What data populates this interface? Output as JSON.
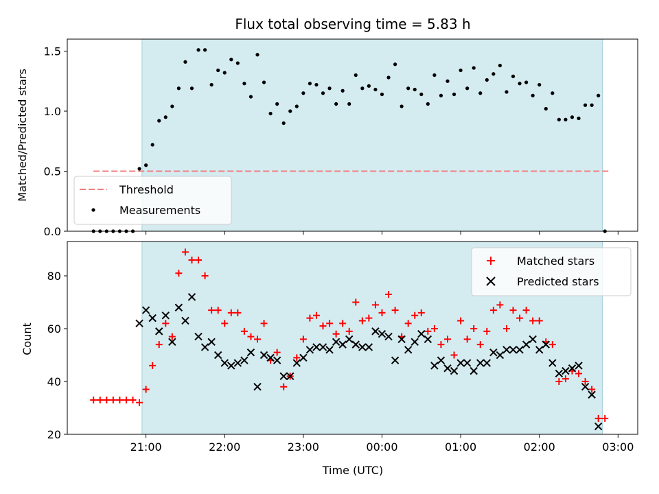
{
  "chart_data": [
    {
      "type": "scatter",
      "title": "Flux total observing time = 5.83 h",
      "xlabel": "",
      "ylabel": "Matched/Predicted stars",
      "ylim": [
        0,
        1.6
      ],
      "xlim": [
        "20:00",
        "03:15"
      ],
      "x_ticks": [
        "21:00",
        "22:00",
        "23:00",
        "00:00",
        "01:00",
        "02:00",
        "03:00"
      ],
      "y_ticks": [
        "0.0",
        "0.5",
        "1.0",
        "1.5"
      ],
      "observing_window": [
        "20:57",
        "02:48"
      ],
      "window_color": "#d4ebf0",
      "legend_position": "lower-left",
      "threshold": {
        "name": "Threshold",
        "value": 0.5,
        "x_range": [
          "20:20",
          "02:53"
        ],
        "color": "#f07f7f"
      },
      "series": [
        {
          "name": "Measurements",
          "color": "#000000",
          "marker": "dot",
          "points": [
            [
              "20:20",
              0.0
            ],
            [
              "20:25",
              0.0
            ],
            [
              "20:30",
              0.0
            ],
            [
              "20:35",
              0.0
            ],
            [
              "20:40",
              0.0
            ],
            [
              "20:45",
              0.0
            ],
            [
              "20:50",
              0.0
            ],
            [
              "20:55",
              0.52
            ],
            [
              "21:00",
              0.55
            ],
            [
              "21:05",
              0.72
            ],
            [
              "21:10",
              0.92
            ],
            [
              "21:15",
              0.95
            ],
            [
              "21:20",
              1.04
            ],
            [
              "21:25",
              1.19
            ],
            [
              "21:30",
              1.41
            ],
            [
              "21:35",
              1.19
            ],
            [
              "21:40",
              1.51
            ],
            [
              "21:45",
              1.51
            ],
            [
              "21:50",
              1.22
            ],
            [
              "21:55",
              1.34
            ],
            [
              "22:00",
              1.32
            ],
            [
              "22:05",
              1.43
            ],
            [
              "22:10",
              1.4
            ],
            [
              "22:15",
              1.23
            ],
            [
              "22:20",
              1.12
            ],
            [
              "22:25",
              1.47
            ],
            [
              "22:30",
              1.24
            ],
            [
              "22:35",
              0.98
            ],
            [
              "22:40",
              1.06
            ],
            [
              "22:45",
              0.9
            ],
            [
              "22:50",
              1.0
            ],
            [
              "22:55",
              1.04
            ],
            [
              "23:00",
              1.15
            ],
            [
              "23:05",
              1.23
            ],
            [
              "23:10",
              1.22
            ],
            [
              "23:15",
              1.15
            ],
            [
              "23:20",
              1.19
            ],
            [
              "23:25",
              1.06
            ],
            [
              "23:30",
              1.17
            ],
            [
              "23:35",
              1.06
            ],
            [
              "23:40",
              1.3
            ],
            [
              "23:45",
              1.19
            ],
            [
              "23:50",
              1.21
            ],
            [
              "23:55",
              1.18
            ],
            [
              "00:00",
              1.14
            ],
            [
              "00:05",
              1.28
            ],
            [
              "00:10",
              1.39
            ],
            [
              "00:15",
              1.04
            ],
            [
              "00:20",
              1.19
            ],
            [
              "00:25",
              1.18
            ],
            [
              "00:30",
              1.14
            ],
            [
              "00:35",
              1.06
            ],
            [
              "00:40",
              1.3
            ],
            [
              "00:45",
              1.13
            ],
            [
              "00:50",
              1.25
            ],
            [
              "00:55",
              1.14
            ],
            [
              "01:00",
              1.34
            ],
            [
              "01:05",
              1.19
            ],
            [
              "01:10",
              1.36
            ],
            [
              "01:15",
              1.15
            ],
            [
              "01:20",
              1.26
            ],
            [
              "01:25",
              1.31
            ],
            [
              "01:30",
              1.38
            ],
            [
              "01:35",
              1.16
            ],
            [
              "01:40",
              1.29
            ],
            [
              "01:45",
              1.23
            ],
            [
              "01:50",
              1.24
            ],
            [
              "01:55",
              1.13
            ],
            [
              "02:00",
              1.22
            ],
            [
              "02:05",
              1.02
            ],
            [
              "02:10",
              1.15
            ],
            [
              "02:15",
              0.93
            ],
            [
              "02:20",
              0.93
            ],
            [
              "02:25",
              0.95
            ],
            [
              "02:30",
              0.94
            ],
            [
              "02:35",
              1.05
            ],
            [
              "02:40",
              1.05
            ],
            [
              "02:45",
              1.13
            ],
            [
              "02:50",
              0.0
            ]
          ]
        }
      ]
    },
    {
      "type": "scatter",
      "title": "",
      "xlabel": "Time (UTC)",
      "ylabel": "Count",
      "ylim": [
        20,
        93
      ],
      "xlim": [
        "20:00",
        "03:15"
      ],
      "x_ticks": [
        "21:00",
        "22:00",
        "23:00",
        "00:00",
        "01:00",
        "02:00",
        "03:00"
      ],
      "y_ticks": [
        "20",
        "40",
        "60",
        "80"
      ],
      "observing_window": [
        "20:57",
        "02:48"
      ],
      "window_color": "#d4ebf0",
      "legend_position": "top-right",
      "series": [
        {
          "name": "Matched stars",
          "color": "#ff0000",
          "marker": "plus",
          "points": [
            [
              "20:20",
              33
            ],
            [
              "20:25",
              33
            ],
            [
              "20:30",
              33
            ],
            [
              "20:35",
              33
            ],
            [
              "20:40",
              33
            ],
            [
              "20:45",
              33
            ],
            [
              "20:50",
              33
            ],
            [
              "20:55",
              32
            ],
            [
              "21:00",
              37
            ],
            [
              "21:05",
              46
            ],
            [
              "21:10",
              54
            ],
            [
              "21:15",
              62
            ],
            [
              "21:20",
              57
            ],
            [
              "21:25",
              81
            ],
            [
              "21:30",
              89
            ],
            [
              "21:35",
              86
            ],
            [
              "21:40",
              86
            ],
            [
              "21:45",
              80
            ],
            [
              "21:50",
              67
            ],
            [
              "21:55",
              67
            ],
            [
              "22:00",
              62
            ],
            [
              "22:05",
              66
            ],
            [
              "22:10",
              66
            ],
            [
              "22:15",
              59
            ],
            [
              "22:20",
              57
            ],
            [
              "22:25",
              56
            ],
            [
              "22:30",
              62
            ],
            [
              "22:35",
              48
            ],
            [
              "22:40",
              51
            ],
            [
              "22:45",
              38
            ],
            [
              "22:50",
              42
            ],
            [
              "22:55",
              49
            ],
            [
              "23:00",
              56
            ],
            [
              "23:05",
              64
            ],
            [
              "23:10",
              65
            ],
            [
              "23:15",
              61
            ],
            [
              "23:20",
              62
            ],
            [
              "23:25",
              58
            ],
            [
              "23:30",
              62
            ],
            [
              "23:35",
              59
            ],
            [
              "23:40",
              70
            ],
            [
              "23:45",
              63
            ],
            [
              "23:50",
              64
            ],
            [
              "23:55",
              69
            ],
            [
              "00:00",
              66
            ],
            [
              "00:05",
              73
            ],
            [
              "00:10",
              67
            ],
            [
              "00:15",
              57
            ],
            [
              "00:20",
              62
            ],
            [
              "00:25",
              65
            ],
            [
              "00:30",
              66
            ],
            [
              "00:35",
              59
            ],
            [
              "00:40",
              60
            ],
            [
              "00:45",
              54
            ],
            [
              "00:50",
              56
            ],
            [
              "00:55",
              50
            ],
            [
              "01:00",
              63
            ],
            [
              "01:05",
              56
            ],
            [
              "01:10",
              60
            ],
            [
              "01:15",
              54
            ],
            [
              "01:20",
              59
            ],
            [
              "01:25",
              67
            ],
            [
              "01:30",
              69
            ],
            [
              "01:35",
              60
            ],
            [
              "01:40",
              67
            ],
            [
              "01:45",
              64
            ],
            [
              "01:50",
              67
            ],
            [
              "01:55",
              63
            ],
            [
              "02:00",
              63
            ],
            [
              "02:05",
              55
            ],
            [
              "02:10",
              54
            ],
            [
              "02:15",
              40
            ],
            [
              "02:20",
              41
            ],
            [
              "02:25",
              44
            ],
            [
              "02:30",
              43
            ],
            [
              "02:35",
              40
            ],
            [
              "02:40",
              37
            ],
            [
              "02:45",
              26
            ],
            [
              "02:50",
              26
            ]
          ]
        },
        {
          "name": "Predicted stars",
          "color": "#000000",
          "marker": "x",
          "points": [
            [
              "20:55",
              62
            ],
            [
              "21:00",
              67
            ],
            [
              "21:05",
              64
            ],
            [
              "21:10",
              59
            ],
            [
              "21:15",
              65
            ],
            [
              "21:20",
              55
            ],
            [
              "21:25",
              68
            ],
            [
              "21:30",
              63
            ],
            [
              "21:35",
              72
            ],
            [
              "21:40",
              57
            ],
            [
              "21:45",
              53
            ],
            [
              "21:50",
              55
            ],
            [
              "21:55",
              50
            ],
            [
              "22:00",
              47
            ],
            [
              "22:05",
              46
            ],
            [
              "22:10",
              47
            ],
            [
              "22:15",
              48
            ],
            [
              "22:20",
              51
            ],
            [
              "22:25",
              38
            ],
            [
              "22:30",
              50
            ],
            [
              "22:35",
              49
            ],
            [
              "22:40",
              48
            ],
            [
              "22:45",
              42
            ],
            [
              "22:50",
              42
            ],
            [
              "22:55",
              47
            ],
            [
              "23:00",
              49
            ],
            [
              "23:05",
              52
            ],
            [
              "23:10",
              53
            ],
            [
              "23:15",
              53
            ],
            [
              "23:20",
              52
            ],
            [
              "23:25",
              55
            ],
            [
              "23:30",
              54
            ],
            [
              "23:35",
              56
            ],
            [
              "23:40",
              54
            ],
            [
              "23:45",
              53
            ],
            [
              "23:50",
              53
            ],
            [
              "23:55",
              59
            ],
            [
              "00:00",
              58
            ],
            [
              "00:05",
              57
            ],
            [
              "00:10",
              48
            ],
            [
              "00:15",
              56
            ],
            [
              "00:20",
              52
            ],
            [
              "00:25",
              55
            ],
            [
              "00:30",
              58
            ],
            [
              "00:35",
              56
            ],
            [
              "00:40",
              46
            ],
            [
              "00:45",
              48
            ],
            [
              "00:50",
              45
            ],
            [
              "00:55",
              44
            ],
            [
              "01:00",
              47
            ],
            [
              "01:05",
              47
            ],
            [
              "01:10",
              44
            ],
            [
              "01:15",
              47
            ],
            [
              "01:20",
              47
            ],
            [
              "01:25",
              51
            ],
            [
              "01:30",
              50
            ],
            [
              "01:35",
              52
            ],
            [
              "01:40",
              52
            ],
            [
              "01:45",
              52
            ],
            [
              "01:50",
              54
            ],
            [
              "01:55",
              56
            ],
            [
              "02:00",
              52
            ],
            [
              "02:05",
              54
            ],
            [
              "02:10",
              47
            ],
            [
              "02:15",
              43
            ],
            [
              "02:20",
              44
            ],
            [
              "02:25",
              45
            ],
            [
              "02:30",
              46
            ],
            [
              "02:35",
              38
            ],
            [
              "02:40",
              35
            ],
            [
              "02:45",
              23
            ]
          ]
        }
      ]
    }
  ]
}
